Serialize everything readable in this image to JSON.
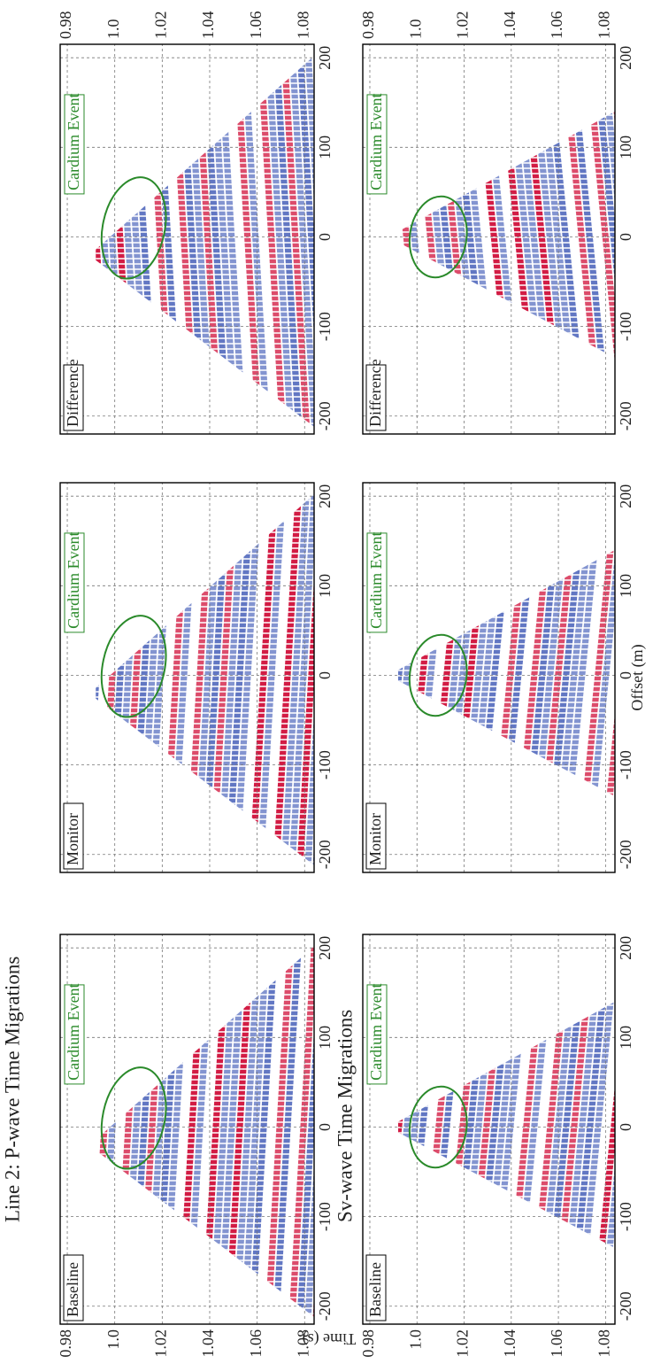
{
  "figure": {
    "rows": [
      {
        "title": "Line 2: P-wave Time Migrations",
        "panels": [
          {
            "label": "Baseline",
            "annotation": "Cardium Event"
          },
          {
            "label": "Monitor",
            "annotation": "Cardium Event"
          },
          {
            "label": "Difference",
            "annotation": "Cardium Event"
          }
        ]
      },
      {
        "title": "Sv-wave Time Migrations",
        "panels": [
          {
            "label": "Baseline",
            "annotation": "Cardium Event"
          },
          {
            "label": "Monitor",
            "annotation": "Cardium Event"
          },
          {
            "label": "Difference",
            "annotation": "Cardium Event"
          }
        ]
      }
    ],
    "y_axis": {
      "label": "Time (s)",
      "lim": [
        0.977,
        1.084
      ],
      "ticks": [
        0.98,
        {
          "value": 1,
          "label": "1.0"
        },
        1.02,
        1.04,
        1.06,
        1.08
      ]
    },
    "x_axis": {
      "label": "Offset (m)",
      "lim": [
        -220,
        215
      ],
      "ticks": [
        -200,
        -100,
        0,
        100,
        200
      ]
    }
  }
}
